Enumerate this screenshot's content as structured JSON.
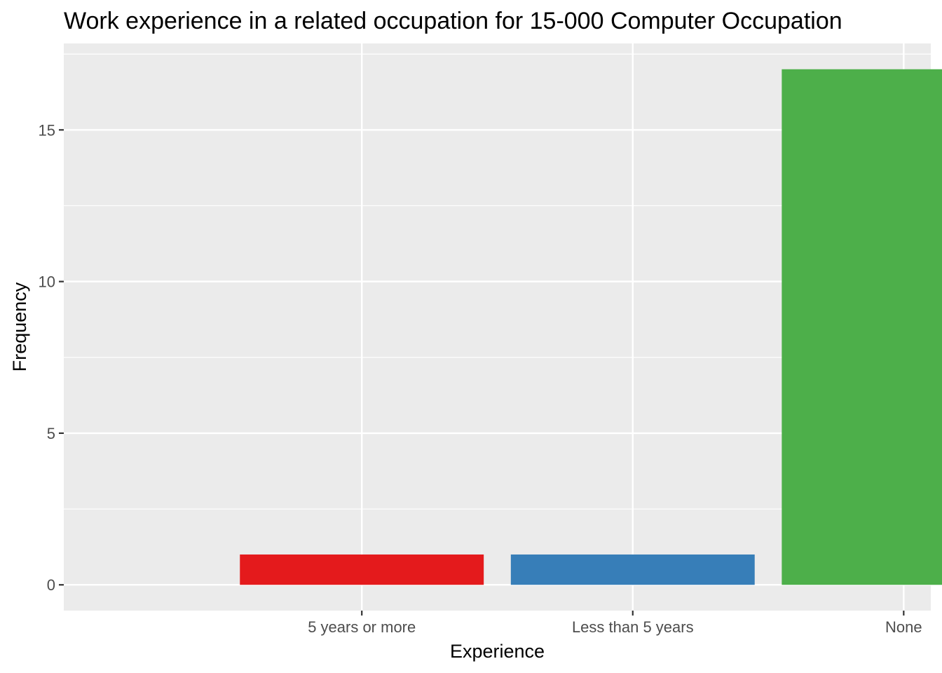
{
  "chart_data": {
    "type": "bar",
    "title": "Work experience in a related occupation for 15-000 Computer Occupation",
    "xlabel": "Experience",
    "ylabel": "Frequency",
    "categories": [
      "5 years or more",
      "Less than 5 years",
      "None"
    ],
    "values": [
      1,
      1,
      17
    ],
    "colors": [
      "#E41A1C",
      "#377EB8",
      "#4DAF4A"
    ],
    "ylim": [
      -0.85,
      17.85
    ],
    "yticks": [
      0,
      5,
      10,
      15
    ],
    "ytick_labels": [
      "0",
      "5",
      "10",
      "15"
    ],
    "grid": true,
    "legend": "none",
    "panel_background": "#EBEBEB"
  }
}
